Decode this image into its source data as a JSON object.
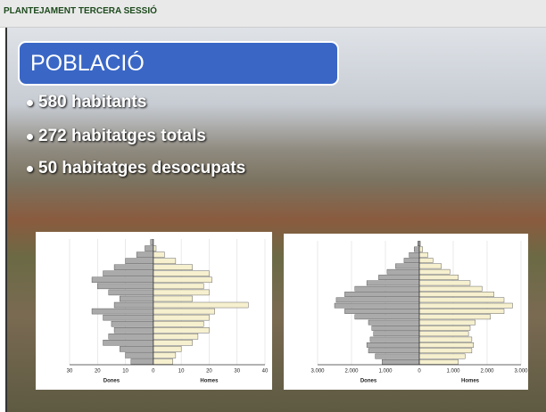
{
  "header": {
    "title": "PLANTEJAMENT TERCERA SESSIÓ"
  },
  "slide": {
    "title": "POBLACIÓ",
    "bullets": [
      "580 habitants",
      "272 habitatges totals",
      "50 habitatges desocupats"
    ]
  },
  "pyramids": [
    {
      "left_label": "Dones",
      "right_label": "Homes",
      "xlim": [
        -30,
        40
      ],
      "xticks": [
        {
          "value": -30,
          "label": "30"
        },
        {
          "value": -20,
          "label": "20"
        },
        {
          "value": -10,
          "label": "10"
        },
        0,
        10,
        20,
        30,
        40
      ],
      "dones": [
        1,
        3,
        6,
        10,
        14,
        18,
        22,
        20,
        16,
        12,
        14,
        22,
        18,
        15,
        14,
        16,
        18,
        12,
        10,
        8
      ],
      "homes": [
        0,
        1,
        4,
        8,
        14,
        20,
        21,
        18,
        20,
        14,
        34,
        22,
        20,
        18,
        20,
        16,
        14,
        10,
        8,
        7
      ]
    },
    {
      "left_label": "Dones",
      "right_label": "Homes",
      "xlim": [
        -3000,
        3000
      ],
      "xticks": [
        {
          "value": -3000,
          "label": "3.000"
        },
        {
          "value": -2000,
          "label": "2.000"
        },
        {
          "value": -1000,
          "label": "1.000"
        },
        0,
        {
          "value": 1000,
          "label": "1.000"
        },
        {
          "value": 2000,
          "label": "2.000"
        },
        {
          "value": 3000,
          "label": "3.000"
        }
      ],
      "dones": [
        50,
        150,
        300,
        450,
        700,
        950,
        1200,
        1550,
        1900,
        2200,
        2450,
        2500,
        2200,
        1900,
        1500,
        1400,
        1350,
        1450,
        1550,
        1500,
        1300,
        1100
      ],
      "homes": [
        30,
        100,
        250,
        400,
        650,
        900,
        1150,
        1500,
        1850,
        2200,
        2500,
        2750,
        2500,
        2100,
        1650,
        1500,
        1450,
        1550,
        1600,
        1550,
        1350,
        1150
      ]
    }
  ]
}
